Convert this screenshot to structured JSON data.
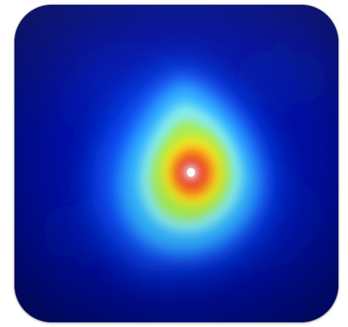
{
  "image": {
    "subject": "heatmap-app-icon",
    "colormap": [
      "#000b55",
      "#0022c8",
      "#0a5cff",
      "#2fb4ff",
      "#7fe6f0",
      "#b4f04e",
      "#f2ea1e",
      "#ff8a1c",
      "#e5251a",
      "#ffffff"
    ]
  }
}
